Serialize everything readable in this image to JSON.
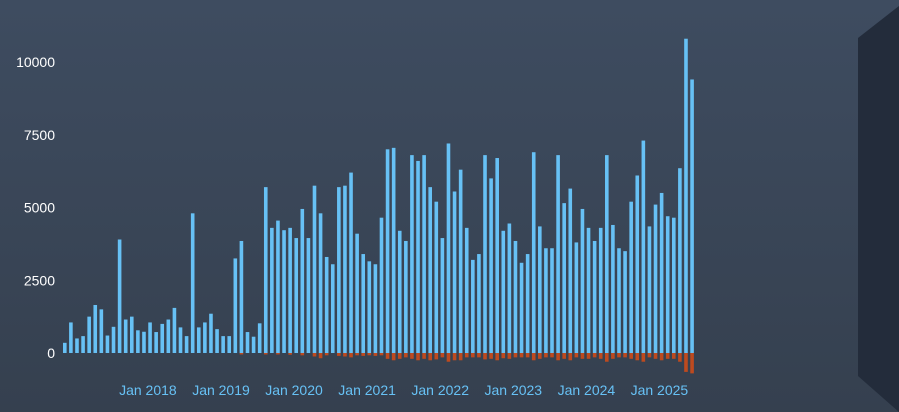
{
  "chart_data": {
    "type": "bar",
    "title": "",
    "xlabel": "",
    "ylabel": "",
    "ylim": [
      -700,
      11000
    ],
    "yticks": [
      0,
      2500,
      5000,
      7500,
      10000
    ],
    "x_start": "2017-01",
    "x_tick_labels": [
      "Jan 2018",
      "Jan 2019",
      "Jan 2020",
      "Jan 2021",
      "Jan 2022",
      "Jan 2023",
      "Jan 2024",
      "Jan 2025"
    ],
    "grid": false,
    "legend": "none",
    "series": [
      {
        "color": "#67c1f5",
        "values": [
          350,
          1050,
          500,
          580,
          1250,
          1650,
          1500,
          600,
          900,
          3900,
          1150,
          1250,
          780,
          730,
          1050,
          720,
          1000,
          1150,
          1550,
          880,
          580,
          4800,
          880,
          1050,
          1350,
          820,
          580,
          580,
          3250,
          3850,
          720,
          560,
          1020,
          5700,
          4300,
          4550,
          4220,
          4300,
          3950,
          4950,
          3950,
          5750,
          4800,
          3300,
          3050,
          5700,
          5750,
          6200,
          4100,
          3400,
          3150,
          3050,
          4650,
          7000,
          7050,
          4200,
          3850,
          6800,
          6600,
          6800,
          5700,
          5200,
          3950,
          7200,
          5550,
          6300,
          4300,
          3200,
          3400,
          6800,
          6000,
          6700,
          4200,
          4450,
          3850,
          3100,
          3400,
          6900,
          4350,
          3600,
          3600,
          6800,
          5150,
          5650,
          3800,
          4950,
          4300,
          3850,
          4300,
          6800,
          4400,
          3600,
          3500,
          5200,
          6100,
          7300,
          4350,
          5100,
          5500,
          4700,
          4650,
          6350,
          10800,
          9400
        ]
      },
      {
        "color": "#bd4a1f",
        "values": [
          0,
          0,
          0,
          0,
          0,
          0,
          0,
          0,
          0,
          0,
          0,
          0,
          0,
          0,
          0,
          0,
          0,
          0,
          0,
          0,
          0,
          0,
          0,
          0,
          0,
          0,
          0,
          0,
          0,
          -50,
          0,
          0,
          0,
          -50,
          0,
          -50,
          0,
          -60,
          0,
          -80,
          0,
          -120,
          -180,
          -80,
          0,
          -100,
          -120,
          -150,
          -80,
          -100,
          -80,
          -100,
          -80,
          -200,
          -250,
          -200,
          -150,
          -200,
          -250,
          -200,
          -250,
          -220,
          -150,
          -300,
          -250,
          -250,
          -150,
          -150,
          -150,
          -220,
          -200,
          -250,
          -180,
          -200,
          -150,
          -150,
          -150,
          -250,
          -200,
          -150,
          -150,
          -250,
          -200,
          -250,
          -150,
          -200,
          -200,
          -150,
          -200,
          -300,
          -200,
          -150,
          -150,
          -200,
          -250,
          -300,
          -150,
          -200,
          -250,
          -200,
          -200,
          -300,
          -650,
          -700
        ]
      }
    ]
  }
}
